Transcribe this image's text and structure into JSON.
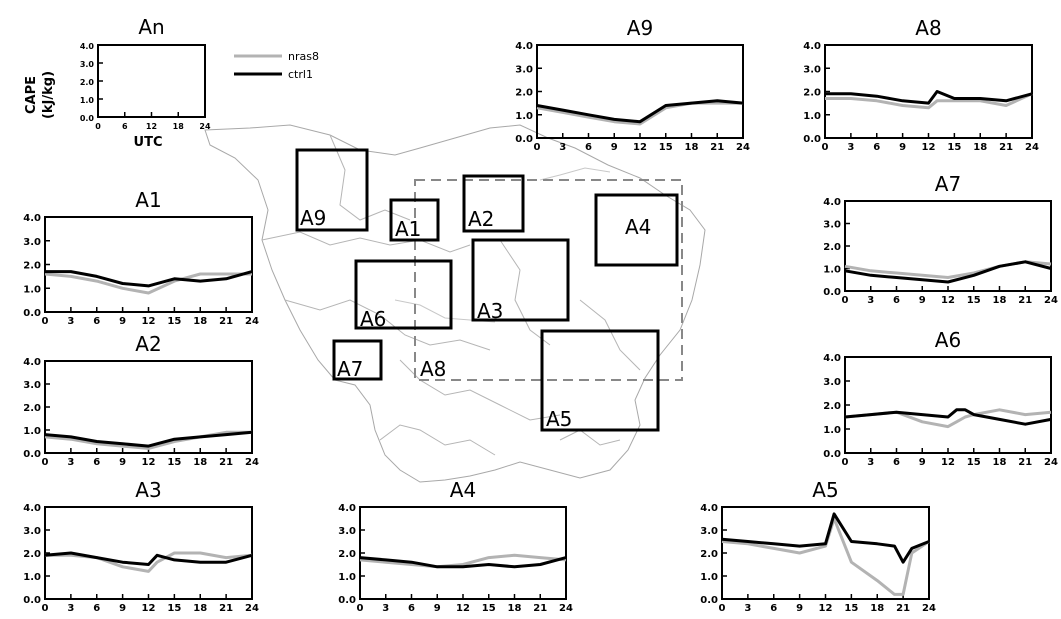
{
  "figure": {
    "y_label_line1": "CAPE",
    "y_label_line2": "(kJ/kg)",
    "x_label": "UTC",
    "legend": [
      {
        "name": "nras8",
        "color": "#b3b3b3"
      },
      {
        "name": "ctrl1",
        "color": "#000000"
      }
    ]
  },
  "map": {
    "region_labels": [
      "A1",
      "A2",
      "A3",
      "A4",
      "A5",
      "A6",
      "A7",
      "A8",
      "A9"
    ],
    "box_color": "#000000",
    "dashed_box_color": "#888888"
  },
  "chart_data": [
    {
      "type": "line",
      "title": "An",
      "x": [
        0,
        6,
        12,
        18,
        24
      ],
      "xticks": [
        "0",
        "6",
        "12",
        "18",
        "24"
      ],
      "yticks": [
        "0.0",
        "1.0",
        "2.0",
        "3.0",
        "4.0"
      ],
      "ylim": [
        0,
        4
      ],
      "xlim": [
        0,
        24
      ],
      "series": []
    },
    {
      "type": "line",
      "title": "A1",
      "x": [
        0,
        3,
        6,
        9,
        12,
        15,
        18,
        21,
        24
      ],
      "xticks": [
        "0",
        "3",
        "6",
        "9",
        "12",
        "15",
        "18",
        "21",
        "24"
      ],
      "yticks": [
        "0.0",
        "1.0",
        "2.0",
        "3.0",
        "4.0"
      ],
      "ylim": [
        0,
        4
      ],
      "xlim": [
        0,
        24
      ],
      "series": [
        {
          "name": "nras8",
          "values": [
            1.6,
            1.5,
            1.3,
            1.0,
            0.8,
            1.3,
            1.6,
            1.6,
            1.6
          ]
        },
        {
          "name": "ctrl1",
          "values": [
            1.7,
            1.7,
            1.5,
            1.2,
            1.1,
            1.4,
            1.3,
            1.4,
            1.7
          ]
        }
      ]
    },
    {
      "type": "line",
      "title": "A2",
      "x": [
        0,
        3,
        6,
        9,
        12,
        15,
        18,
        21,
        24
      ],
      "xticks": [
        "0",
        "3",
        "6",
        "9",
        "12",
        "15",
        "18",
        "21",
        "24"
      ],
      "yticks": [
        "0.0",
        "1.0",
        "2.0",
        "3.0",
        "4.0"
      ],
      "ylim": [
        0,
        4
      ],
      "xlim": [
        0,
        24
      ],
      "series": [
        {
          "name": "nras8",
          "values": [
            0.7,
            0.6,
            0.4,
            0.3,
            0.2,
            0.5,
            0.7,
            0.9,
            0.9
          ]
        },
        {
          "name": "ctrl1",
          "values": [
            0.8,
            0.7,
            0.5,
            0.4,
            0.3,
            0.6,
            0.7,
            0.8,
            0.9
          ]
        }
      ]
    },
    {
      "type": "line",
      "title": "A3",
      "x": [
        0,
        3,
        6,
        9,
        12,
        13,
        15,
        18,
        21,
        24
      ],
      "xticks": [
        "0",
        "3",
        "6",
        "9",
        "12",
        "15",
        "18",
        "21",
        "24"
      ],
      "yticks": [
        "0.0",
        "1.0",
        "2.0",
        "3.0",
        "4.0"
      ],
      "ylim": [
        0,
        4
      ],
      "xlim": [
        0,
        24
      ],
      "series": [
        {
          "name": "nras8",
          "values": [
            1.9,
            1.9,
            1.8,
            1.4,
            1.2,
            1.6,
            2.0,
            2.0,
            1.8,
            1.9
          ]
        },
        {
          "name": "ctrl1",
          "values": [
            1.9,
            2.0,
            1.8,
            1.6,
            1.5,
            1.9,
            1.7,
            1.6,
            1.6,
            1.9
          ]
        }
      ]
    },
    {
      "type": "line",
      "title": "A4",
      "x": [
        0,
        3,
        6,
        9,
        12,
        15,
        18,
        21,
        24
      ],
      "xticks": [
        "0",
        "3",
        "6",
        "9",
        "12",
        "15",
        "18",
        "21",
        "24"
      ],
      "yticks": [
        "0.0",
        "1.0",
        "2.0",
        "3.0",
        "4.0"
      ],
      "ylim": [
        0,
        4
      ],
      "xlim": [
        0,
        24
      ],
      "series": [
        {
          "name": "nras8",
          "values": [
            1.7,
            1.6,
            1.5,
            1.4,
            1.5,
            1.8,
            1.9,
            1.8,
            1.7
          ]
        },
        {
          "name": "ctrl1",
          "values": [
            1.8,
            1.7,
            1.6,
            1.4,
            1.4,
            1.5,
            1.4,
            1.5,
            1.8
          ]
        }
      ]
    },
    {
      "type": "line",
      "title": "A5",
      "x": [
        0,
        3,
        6,
        9,
        12,
        13,
        15,
        18,
        20,
        21,
        22,
        24
      ],
      "xticks": [
        "0",
        "3",
        "6",
        "9",
        "12",
        "15",
        "18",
        "21",
        "24"
      ],
      "yticks": [
        "0.0",
        "1.0",
        "2.0",
        "3.0",
        "4.0"
      ],
      "ylim": [
        0,
        4
      ],
      "xlim": [
        0,
        24
      ],
      "series": [
        {
          "name": "nras8",
          "values": [
            2.5,
            2.4,
            2.2,
            2.0,
            2.3,
            3.5,
            1.6,
            0.8,
            0.2,
            0.2,
            2.0,
            2.5
          ]
        },
        {
          "name": "ctrl1",
          "values": [
            2.6,
            2.5,
            2.4,
            2.3,
            2.4,
            3.7,
            2.5,
            2.4,
            2.3,
            1.6,
            2.2,
            2.5
          ]
        }
      ]
    },
    {
      "type": "line",
      "title": "A6",
      "x": [
        0,
        3,
        6,
        9,
        12,
        13,
        14,
        15,
        18,
        21,
        24
      ],
      "xticks": [
        "0",
        "3",
        "6",
        "9",
        "12",
        "15",
        "18",
        "21",
        "24"
      ],
      "yticks": [
        "0.0",
        "1.0",
        "2.0",
        "3.0",
        "4.0"
      ],
      "ylim": [
        0,
        4
      ],
      "xlim": [
        0,
        24
      ],
      "series": [
        {
          "name": "nras8",
          "values": [
            1.5,
            1.6,
            1.7,
            1.3,
            1.1,
            1.3,
            1.5,
            1.6,
            1.8,
            1.6,
            1.7
          ]
        },
        {
          "name": "ctrl1",
          "values": [
            1.5,
            1.6,
            1.7,
            1.6,
            1.5,
            1.8,
            1.8,
            1.6,
            1.4,
            1.2,
            1.4
          ]
        }
      ]
    },
    {
      "type": "line",
      "title": "A7",
      "x": [
        0,
        3,
        6,
        9,
        12,
        15,
        18,
        21,
        24
      ],
      "xticks": [
        "0",
        "3",
        "6",
        "9",
        "12",
        "15",
        "18",
        "21",
        "24"
      ],
      "yticks": [
        "0.0",
        "1.0",
        "2.0",
        "3.0",
        "4.0"
      ],
      "ylim": [
        0,
        4
      ],
      "xlim": [
        0,
        24
      ],
      "series": [
        {
          "name": "nras8",
          "values": [
            1.1,
            0.9,
            0.8,
            0.7,
            0.6,
            0.8,
            1.1,
            1.3,
            1.2
          ]
        },
        {
          "name": "ctrl1",
          "values": [
            0.9,
            0.7,
            0.6,
            0.5,
            0.4,
            0.7,
            1.1,
            1.3,
            1.0
          ]
        }
      ]
    },
    {
      "type": "line",
      "title": "A8",
      "x": [
        0,
        3,
        6,
        9,
        12,
        13,
        15,
        18,
        21,
        24
      ],
      "xticks": [
        "0",
        "3",
        "6",
        "9",
        "12",
        "15",
        "18",
        "21",
        "24"
      ],
      "yticks": [
        "0.0",
        "1.0",
        "2.0",
        "3.0",
        "4.0"
      ],
      "ylim": [
        0,
        4
      ],
      "xlim": [
        0,
        24
      ],
      "series": [
        {
          "name": "nras8",
          "values": [
            1.7,
            1.7,
            1.6,
            1.4,
            1.3,
            1.6,
            1.6,
            1.6,
            1.4,
            1.9
          ]
        },
        {
          "name": "ctrl1",
          "values": [
            1.9,
            1.9,
            1.8,
            1.6,
            1.5,
            2.0,
            1.7,
            1.7,
            1.6,
            1.9
          ]
        }
      ]
    },
    {
      "type": "line",
      "title": "A9",
      "x": [
        0,
        3,
        6,
        9,
        12,
        15,
        18,
        21,
        24
      ],
      "xticks": [
        "0",
        "3",
        "6",
        "9",
        "12",
        "15",
        "18",
        "21",
        "24"
      ],
      "yticks": [
        "0.0",
        "1.0",
        "2.0",
        "3.0",
        "4.0"
      ],
      "ylim": [
        0,
        4
      ],
      "xlim": [
        0,
        24
      ],
      "series": [
        {
          "name": "nras8",
          "values": [
            1.3,
            1.1,
            0.9,
            0.7,
            0.6,
            1.3,
            1.5,
            1.5,
            1.5
          ]
        },
        {
          "name": "ctrl1",
          "values": [
            1.4,
            1.2,
            1.0,
            0.8,
            0.7,
            1.4,
            1.5,
            1.6,
            1.5
          ]
        }
      ]
    }
  ]
}
